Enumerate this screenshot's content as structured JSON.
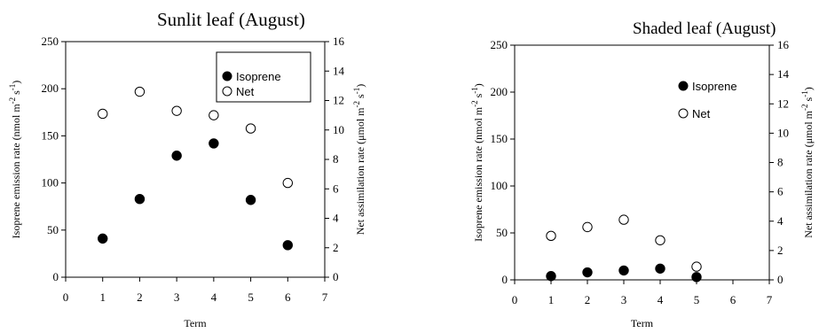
{
  "chart_data": [
    {
      "type": "scatter",
      "title": "Sunlit leaf (August)",
      "xlabel": "Term",
      "ylabel": "Isoprene emission rate (nmol m-2 s-1)",
      "y2label": "Net assimilation rate (μmol m-2 s-1)",
      "xlim": [
        0,
        7
      ],
      "ylim": [
        0,
        250
      ],
      "y2lim": [
        0,
        16
      ],
      "xticks": [
        "0",
        "1",
        "2",
        "3",
        "4",
        "5",
        "6",
        "7"
      ],
      "yticks": [
        "0",
        "50",
        "100",
        "150",
        "200",
        "250"
      ],
      "y2ticks": [
        "0",
        "2",
        "4",
        "6",
        "8",
        "10",
        "12",
        "14",
        "16"
      ],
      "legend_position": "top-right",
      "grid": false,
      "series": [
        {
          "name": "Isoprene",
          "axis": "left",
          "marker": "filled-circle",
          "x": [
            1,
            2,
            3,
            4,
            5,
            6
          ],
          "values": [
            41,
            83,
            129,
            142,
            82,
            34
          ]
        },
        {
          "name": "Net",
          "axis": "right",
          "marker": "open-circle",
          "x": [
            1,
            2,
            3,
            4,
            5,
            6
          ],
          "values": [
            11.1,
            12.6,
            11.3,
            11.0,
            10.1,
            6.4
          ]
        }
      ]
    },
    {
      "type": "scatter",
      "title": "Shaded leaf (August)",
      "xlabel": "Term",
      "ylabel": "Isoprene emission rate (nmol m-2 s-1)",
      "y2label": "Net assimilation rate (μmol m-2 s-1)",
      "xlim": [
        0,
        7
      ],
      "ylim": [
        0,
        250
      ],
      "y2lim": [
        0,
        16
      ],
      "xticks": [
        "0",
        "1",
        "2",
        "3",
        "4",
        "5",
        "6",
        "7"
      ],
      "yticks": [
        "0",
        "50",
        "100",
        "150",
        "200",
        "250"
      ],
      "y2ticks": [
        "0",
        "2",
        "4",
        "6",
        "8",
        "10",
        "12",
        "14",
        "16"
      ],
      "legend_position": "top-right",
      "grid": false,
      "series": [
        {
          "name": "Isoprene",
          "axis": "left",
          "marker": "filled-circle",
          "x": [
            1,
            2,
            3,
            4,
            5
          ],
          "values": [
            4,
            8,
            10,
            12,
            3
          ]
        },
        {
          "name": "Net",
          "axis": "right",
          "marker": "open-circle",
          "x": [
            1,
            2,
            3,
            4,
            5
          ],
          "values": [
            3.0,
            3.6,
            4.1,
            2.7,
            0.9
          ]
        }
      ]
    }
  ]
}
